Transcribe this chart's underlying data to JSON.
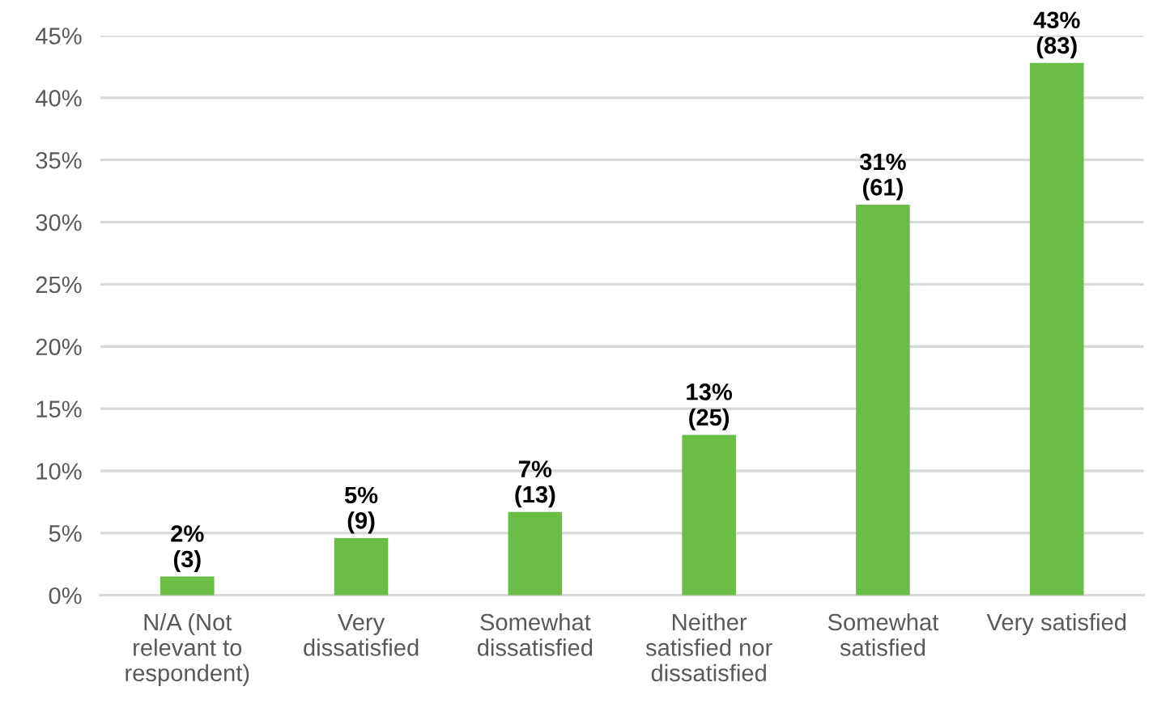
{
  "chart_data": {
    "type": "bar",
    "categories": [
      "N/A (Not\nrelevant to\nrespondent)",
      "Very\ndissatisfied",
      "Somewhat\ndissatisfied",
      "Neither\nsatisfied nor\ndissatisfied",
      "Somewhat\nsatisfied",
      "Very satisfied"
    ],
    "values": [
      1.5,
      4.6,
      6.7,
      12.9,
      31.4,
      42.8
    ],
    "value_labels": [
      "2%\n(3)",
      "5%\n(9)",
      "7%\n(13)",
      "13%\n(25)",
      "31%\n(61)",
      "43%\n(83)"
    ],
    "color": "#6abd45",
    "ylim": [
      0,
      45
    ],
    "yticks": [
      {
        "value": 0,
        "label": "0%"
      },
      {
        "value": 5,
        "label": "5%"
      },
      {
        "value": 10,
        "label": "10%"
      },
      {
        "value": 15,
        "label": "15%"
      },
      {
        "value": 20,
        "label": "20%"
      },
      {
        "value": 25,
        "label": "25%"
      },
      {
        "value": 30,
        "label": "30%"
      },
      {
        "value": 35,
        "label": "35%"
      },
      {
        "value": 40,
        "label": "40%"
      },
      {
        "value": 45,
        "label": "45%"
      }
    ],
    "grid": "y"
  }
}
